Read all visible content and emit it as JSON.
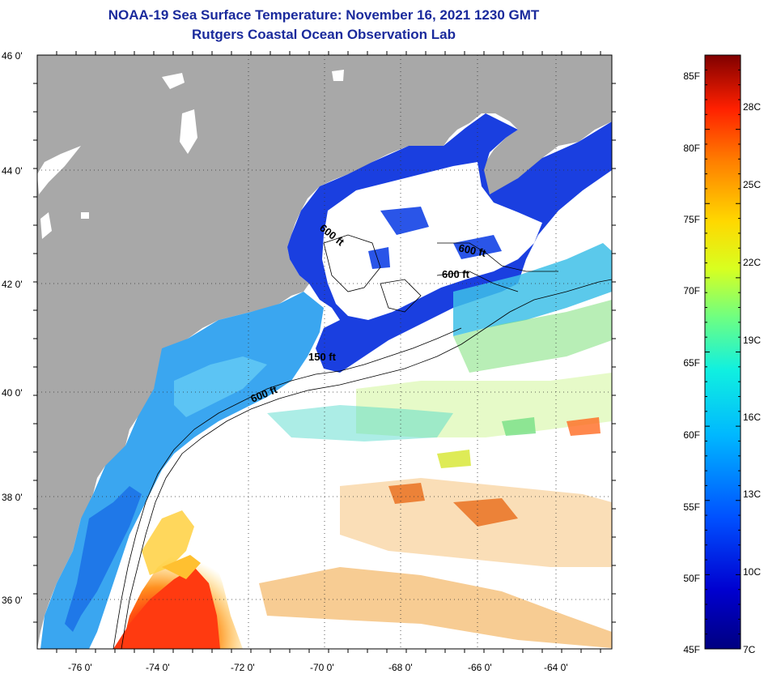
{
  "header": {
    "title": "NOAA-19 Sea Surface Temperature:  November 16, 2021 1230 GMT",
    "subtitle": "Rutgers Coastal Ocean Observation Lab"
  },
  "map": {
    "lat_labels": [
      "46 0'",
      "44 0'",
      "42 0'",
      "40 0'",
      "38 0'",
      "36 0'"
    ],
    "lon_labels": [
      "-76 0'",
      "-74 0'",
      "-72 0'",
      "-70 0'",
      "-68 0'",
      "-66 0'",
      "-64 0'"
    ],
    "contour_labels": [
      "600 ft",
      "600 ft",
      "600 ft",
      "150 ft",
      "600 ft"
    ],
    "colors": {
      "land": "#a8a8a8",
      "cloud": "#ffffff",
      "cold": "#0a2ed8",
      "warm": "#e02a10"
    }
  },
  "colorbar": {
    "fahrenheit_labels": [
      "85F",
      "80F",
      "75F",
      "70F",
      "65F",
      "60F",
      "55F",
      "50F",
      "45F"
    ],
    "celsius_labels": [
      "28C",
      "25C",
      "22C",
      "19C",
      "16C",
      "13C",
      "10C",
      "7C"
    ]
  }
}
